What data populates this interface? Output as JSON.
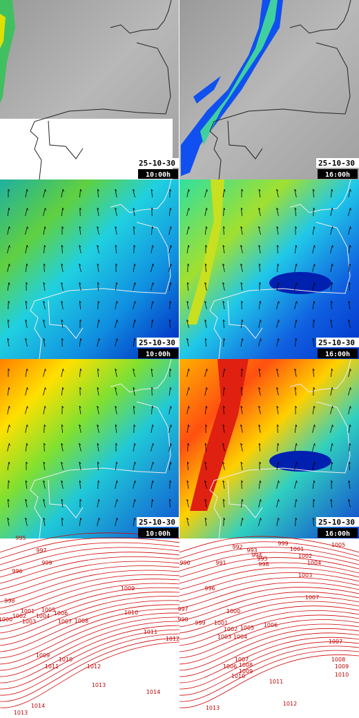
{
  "panels": [
    {
      "date": "25-10-30",
      "time": "10:00h"
    },
    {
      "date": "25-10-30",
      "time": "16:00h"
    },
    {
      "date": "25-10-30",
      "time": "10:00h"
    },
    {
      "date": "25-10-30",
      "time": "16:00h"
    },
    {
      "date": "25-10-30",
      "time": "10:00h"
    },
    {
      "date": "25-10-30",
      "time": "16:00h"
    }
  ],
  "contours": {
    "left": [
      "995",
      "997",
      "996",
      "999",
      "998",
      "1000",
      "1001",
      "1002",
      "1003",
      "1004",
      "1005",
      "1006",
      "1007",
      "1008",
      "1009",
      "1010",
      "1011",
      "1012",
      "1009",
      "1010",
      "1011",
      "1012",
      "1013",
      "1014",
      "1014",
      "1013"
    ],
    "right": [
      "990",
      "991",
      "992",
      "993",
      "994",
      "995",
      "998",
      "999",
      "1001",
      "1002",
      "1003",
      "1004",
      "1005",
      "1007",
      "1000",
      "1001",
      "1002",
      "1003",
      "1004",
      "1005",
      "1006",
      "999",
      "997",
      "998",
      "996",
      "1007",
      "1008",
      "1009",
      "1010",
      "1006",
      "1007",
      "1008",
      "1009",
      "1010",
      "1011",
      "1012",
      "1013"
    ]
  }
}
